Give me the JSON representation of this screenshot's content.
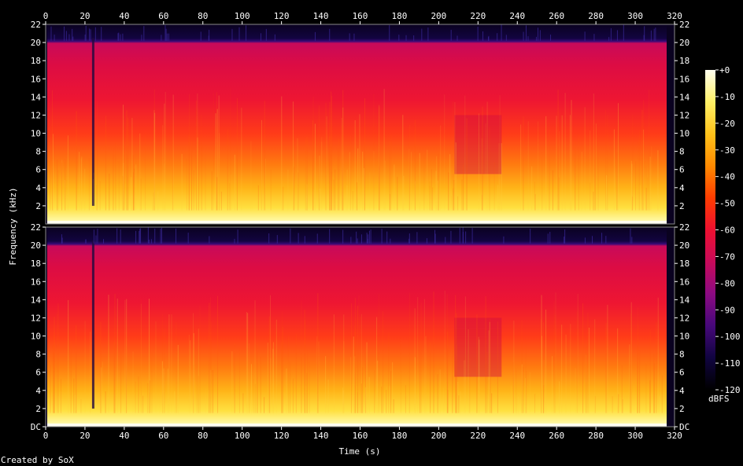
{
  "chart_data": {
    "type": "heatmap",
    "title": "",
    "xlabel": "Time (s)",
    "ylabel": "Frequency (kHz)",
    "xlim": [
      0,
      320
    ],
    "ylim": [
      0,
      22
    ],
    "x_ticks": [
      "0",
      "20",
      "40",
      "60",
      "80",
      "100",
      "120",
      "140",
      "160",
      "180",
      "200",
      "220",
      "240",
      "260",
      "280",
      "300",
      "320"
    ],
    "y_ticks": [
      "DC",
      "2",
      "4",
      "6",
      "8",
      "10",
      "12",
      "14",
      "16",
      "18",
      "20",
      "22"
    ],
    "channels": 2,
    "audio_end_seconds": 316,
    "colorbar": {
      "label": "dBFS",
      "min": -120,
      "max": 0,
      "ticks": [
        "+0",
        "-10",
        "-20",
        "-30",
        "-40",
        "-50",
        "-60",
        "-70",
        "-80",
        "-90",
        "-100",
        "-110",
        "-120"
      ],
      "colors": [
        "#fffff0",
        "#fff066",
        "#ffc21a",
        "#ff8a00",
        "#ff3c00",
        "#ee1030",
        "#c80a5a",
        "#8c0a82",
        "#46087a",
        "#100440",
        "#000000"
      ]
    },
    "credit": "Created by SoX"
  }
}
